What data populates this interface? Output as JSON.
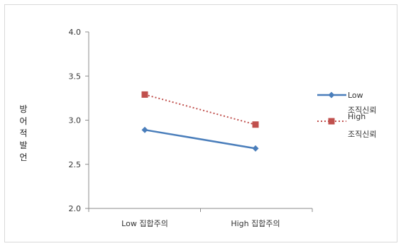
{
  "chart_data": {
    "type": "line",
    "title": "",
    "xlabel": "",
    "ylabel": "방어적 발언",
    "categories": [
      "Low 집합주의",
      "High 집합주의"
    ],
    "ylim": [
      2.0,
      4.0
    ],
    "yticks": [
      "2.0",
      "2.5",
      "3.0",
      "3.5",
      "4.0"
    ],
    "grid": false,
    "legend_position": "right",
    "series": [
      {
        "name": "Low 조직신뢰",
        "legend_lines": [
          "Low",
          "조직신뢰"
        ],
        "values": [
          2.89,
          2.68
        ],
        "color": "#4a7ebb",
        "marker": "diamond",
        "line_style": "solid"
      },
      {
        "name": "High 조직신뢰",
        "legend_lines": [
          "High",
          "조직신뢰"
        ],
        "values": [
          3.29,
          2.95
        ],
        "color": "#c0504d",
        "marker": "square",
        "line_style": "dotted"
      }
    ]
  }
}
